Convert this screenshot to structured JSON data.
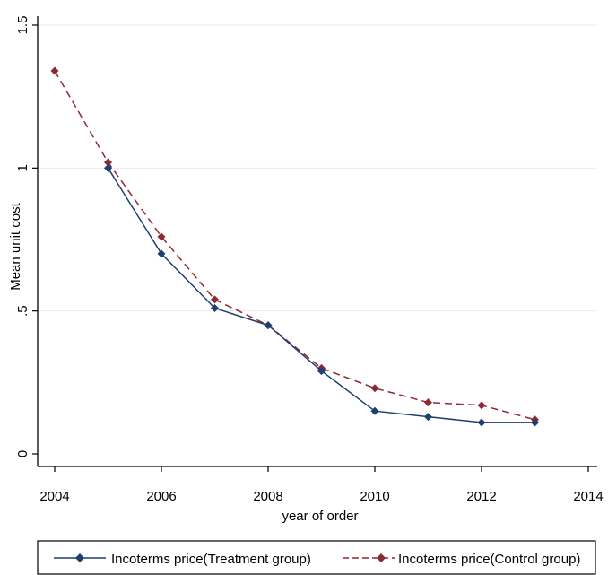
{
  "chart_data": {
    "type": "line",
    "xlabel": "year of order",
    "ylabel": "Mean unit cost",
    "xlim": [
      2004,
      2014
    ],
    "ylim": [
      0,
      1.5
    ],
    "xticks": [
      2004,
      2006,
      2008,
      2010,
      2012,
      2014
    ],
    "xtick_labels": [
      "2004",
      "2006",
      "2008",
      "2010",
      "2012",
      "2014"
    ],
    "yticks": [
      0,
      0.5,
      1,
      1.5
    ],
    "ytick_labels": [
      "0",
      ".5",
      "1",
      "1.5"
    ],
    "grid": true,
    "legend_position": "bottom",
    "series": [
      {
        "name": "Incoterms price(Treatment group)",
        "color": "#1f3f6e",
        "line_style": "solid",
        "marker": "diamond",
        "x": [
          2005,
          2006,
          2007,
          2008,
          2009,
          2010,
          2011,
          2012,
          2013
        ],
        "y": [
          1.0,
          0.7,
          0.51,
          0.45,
          0.29,
          0.15,
          0.13,
          0.11,
          0.11
        ]
      },
      {
        "name": "Incoterms price(Control group)",
        "color": "#8b2a35",
        "line_style": "dashed",
        "marker": "diamond",
        "x": [
          2004,
          2005,
          2006,
          2007,
          2008,
          2009,
          2010,
          2011,
          2012,
          2013
        ],
        "y": [
          1.34,
          1.02,
          0.76,
          0.54,
          0.45,
          0.3,
          0.23,
          0.18,
          0.17,
          0.12
        ]
      }
    ]
  }
}
